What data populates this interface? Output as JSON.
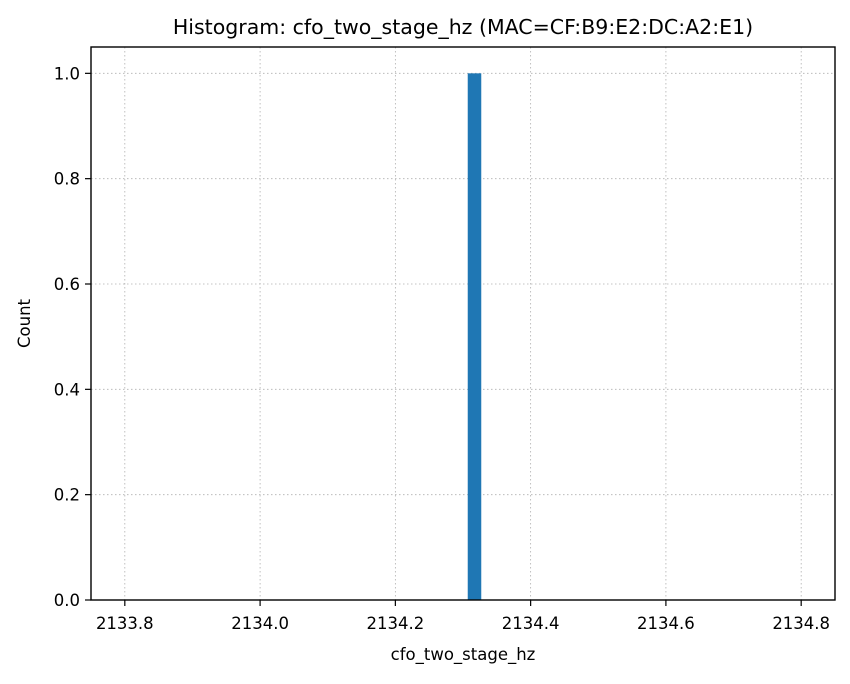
{
  "chart_data": {
    "type": "bar",
    "title": "Histogram: cfo_two_stage_hz (MAC=CF:B9:E2:DC:A2:E1)",
    "xlabel": "cfo_two_stage_hz",
    "ylabel": "Count",
    "xlim": [
      2133.75,
      2134.85
    ],
    "ylim": [
      0,
      1.05
    ],
    "x_ticks": [
      2133.8,
      2134.0,
      2134.2,
      2134.4,
      2134.6,
      2134.8
    ],
    "x_tick_labels": [
      "2133.8",
      "2134.0",
      "2134.2",
      "2134.4",
      "2134.6",
      "2134.8"
    ],
    "y_ticks": [
      0.0,
      0.2,
      0.4,
      0.6,
      0.8,
      1.0
    ],
    "y_tick_labels": [
      "0.0",
      "0.2",
      "0.4",
      "0.6",
      "0.8",
      "1.0"
    ],
    "grid": true,
    "bins": [
      {
        "x0": 2134.307,
        "x1": 2134.327,
        "count": 1
      }
    ],
    "colors": {
      "bar": "#1f77b4",
      "grid": "#b0b0b0"
    }
  }
}
